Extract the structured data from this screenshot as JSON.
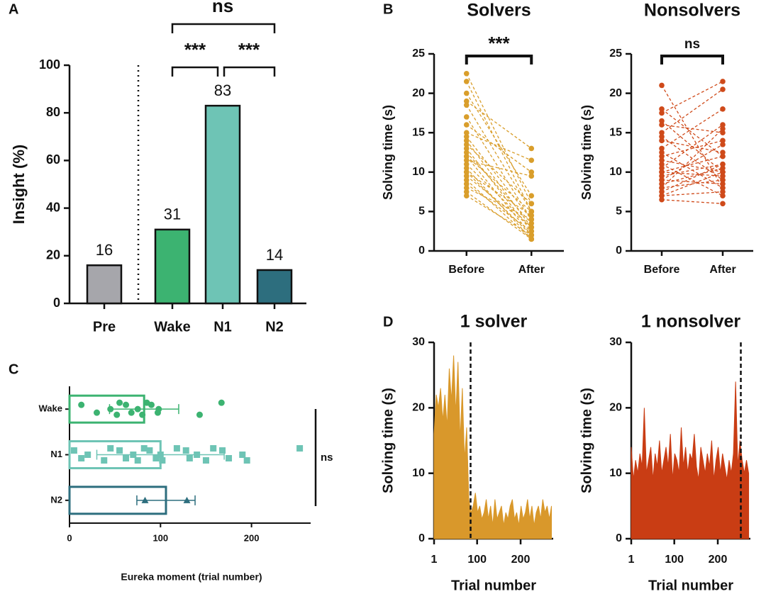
{
  "chart_data": [
    {
      "type": "bar",
      "panel": "A",
      "categories": [
        "Pre",
        "Wake",
        "N1",
        "N2"
      ],
      "values": [
        16,
        31,
        83,
        14
      ],
      "colors": [
        "#a6a6ab",
        "#3cb371",
        "#6ec4b5",
        "#2d6e7e"
      ],
      "ylim": [
        0,
        100
      ],
      "yticks": [
        0,
        20,
        40,
        60,
        80,
        100
      ],
      "ylabel": "Insight (%)",
      "significance": [
        "ns",
        "***",
        "***"
      ]
    },
    {
      "type": "line",
      "panel": "B",
      "title": "Solvers",
      "categories": [
        "Before",
        "After"
      ],
      "color": "#d99e2b",
      "ylim": [
        0,
        25
      ],
      "yticks": [
        0,
        5,
        10,
        15,
        20,
        25
      ],
      "ylabel": "Solving time (s)",
      "significance": "***",
      "series": [
        {
          "values": [
            22.5,
            6
          ]
        },
        {
          "values": [
            21.5,
            5
          ]
        },
        {
          "values": [
            20,
            7
          ]
        },
        {
          "values": [
            19,
            13
          ]
        },
        {
          "values": [
            18.5,
            5
          ]
        },
        {
          "values": [
            17,
            4
          ]
        },
        {
          "values": [
            16,
            10
          ]
        },
        {
          "values": [
            15,
            11.5
          ]
        },
        {
          "values": [
            14.5,
            4
          ]
        },
        {
          "values": [
            14,
            3
          ]
        },
        {
          "values": [
            13.5,
            6
          ]
        },
        {
          "values": [
            13,
            2.5
          ]
        },
        {
          "values": [
            12.5,
            3.5
          ]
        },
        {
          "values": [
            12,
            5
          ]
        },
        {
          "values": [
            12,
            2
          ]
        },
        {
          "values": [
            11.5,
            9.5
          ]
        },
        {
          "values": [
            11,
            3
          ]
        },
        {
          "values": [
            10.5,
            1.5
          ]
        },
        {
          "values": [
            10,
            4.5
          ]
        },
        {
          "values": [
            10,
            2
          ]
        },
        {
          "values": [
            9.5,
            3
          ]
        },
        {
          "values": [
            9,
            1.5
          ]
        },
        {
          "values": [
            8.5,
            2.5
          ]
        },
        {
          "values": [
            8,
            4
          ]
        },
        {
          "values": [
            7.5,
            1.5
          ]
        },
        {
          "values": [
            7,
            2
          ]
        }
      ]
    },
    {
      "type": "line",
      "title": "Nonsolvers",
      "categories": [
        "Before",
        "After"
      ],
      "color": "#cf4a1a",
      "ylim": [
        0,
        25
      ],
      "yticks": [
        0,
        5,
        10,
        15,
        20,
        25
      ],
      "ylabel": "Solving time (s)",
      "significance": "ns",
      "series": [
        {
          "values": [
            21,
            8
          ]
        },
        {
          "values": [
            18,
            12
          ]
        },
        {
          "values": [
            17.5,
            21.5
          ]
        },
        {
          "values": [
            16.5,
            10
          ]
        },
        {
          "values": [
            16,
            15
          ]
        },
        {
          "values": [
            15,
            20.5
          ]
        },
        {
          "values": [
            14.5,
            9
          ]
        },
        {
          "values": [
            14,
            12.5
          ]
        },
        {
          "values": [
            13,
            18
          ]
        },
        {
          "values": [
            12.5,
            8
          ]
        },
        {
          "values": [
            12,
            14
          ]
        },
        {
          "values": [
            11.5,
            10
          ]
        },
        {
          "values": [
            11,
            7
          ]
        },
        {
          "values": [
            10.5,
            16
          ]
        },
        {
          "values": [
            10,
            9.5
          ]
        },
        {
          "values": [
            10,
            12
          ]
        },
        {
          "values": [
            9.5,
            11
          ]
        },
        {
          "values": [
            9,
            8.5
          ]
        },
        {
          "values": [
            9,
            13.5
          ]
        },
        {
          "values": [
            8.5,
            10.5
          ]
        },
        {
          "values": [
            8,
            15.5
          ]
        },
        {
          "values": [
            8,
            9
          ]
        },
        {
          "values": [
            7.5,
            11
          ]
        },
        {
          "values": [
            7,
            7.5
          ]
        },
        {
          "values": [
            7,
            10
          ]
        },
        {
          "values": [
            6.5,
            6
          ]
        }
      ]
    },
    {
      "type": "hbar",
      "panel": "C",
      "categories": [
        "Wake",
        "N1",
        "N2"
      ],
      "values": [
        82,
        100,
        106
      ],
      "errors": [
        38,
        70,
        32
      ],
      "points": [
        [
          13,
          30,
          45,
          52,
          55,
          62,
          68,
          75,
          80,
          85,
          90,
          97,
          98,
          143,
          167
        ],
        [
          5,
          13,
          20,
          38,
          45,
          55,
          62,
          70,
          75,
          82,
          88,
          95,
          100,
          102,
          118,
          128,
          132,
          140,
          150,
          158,
          168,
          175,
          190,
          195,
          253
        ],
        [
          83,
          129
        ]
      ],
      "colors": [
        "#3cb371",
        "#6ec4b5",
        "#2d6e7e"
      ],
      "markers": [
        "circle",
        "square",
        "triangle"
      ],
      "xlim": [
        0,
        265
      ],
      "xticks": [
        0,
        100,
        200
      ],
      "xlabel": "Eureka moment (trial number)",
      "annotation": "ns"
    },
    {
      "type": "area",
      "panel": "D",
      "title": "1 solver",
      "color": "#d9982b",
      "vline": 85,
      "xlim": [
        1,
        275
      ],
      "xticks": [
        1,
        100,
        200
      ],
      "ylim": [
        0,
        30
      ],
      "yticks": [
        0,
        10,
        20,
        30
      ],
      "xlabel": "Trial number",
      "ylabel": "Solving time (s)",
      "x": [
        1,
        6,
        11,
        16,
        21,
        26,
        31,
        36,
        41,
        46,
        51,
        56,
        61,
        66,
        71,
        76,
        81,
        86,
        91,
        96,
        101,
        106,
        111,
        116,
        121,
        126,
        131,
        136,
        141,
        146,
        151,
        156,
        161,
        166,
        171,
        176,
        181,
        186,
        191,
        196,
        201,
        206,
        211,
        216,
        221,
        226,
        231,
        236,
        241,
        246,
        251,
        256,
        261,
        266,
        271
      ],
      "values": [
        16,
        22,
        20,
        23,
        18,
        22,
        17,
        26,
        21,
        28,
        19,
        27,
        15,
        23,
        12,
        17,
        6,
        4,
        5,
        7,
        4,
        5,
        3,
        4,
        6,
        3,
        5,
        2,
        6,
        3,
        4,
        5,
        2,
        4,
        3,
        5,
        6,
        3,
        4,
        2,
        5,
        3,
        4,
        6,
        3,
        5,
        2,
        4,
        5,
        3,
        6,
        4,
        5,
        3,
        5
      ]
    },
    {
      "type": "area",
      "title": "1 nonsolver",
      "color": "#c93d14",
      "vline": 253,
      "xlim": [
        1,
        275
      ],
      "xticks": [
        1,
        100,
        200
      ],
      "ylim": [
        0,
        30
      ],
      "yticks": [
        0,
        10,
        20,
        30
      ],
      "xlabel": "Trial number",
      "ylabel": "Solving time (s)",
      "x": [
        1,
        6,
        11,
        16,
        21,
        26,
        31,
        36,
        41,
        46,
        51,
        56,
        61,
        66,
        71,
        76,
        81,
        86,
        91,
        96,
        101,
        106,
        111,
        116,
        121,
        126,
        131,
        136,
        141,
        146,
        151,
        156,
        161,
        166,
        171,
        176,
        181,
        186,
        191,
        196,
        201,
        206,
        211,
        216,
        221,
        226,
        231,
        236,
        241,
        246,
        251,
        256,
        261,
        266,
        271
      ],
      "values": [
        14,
        9,
        12,
        10,
        13,
        11,
        20,
        10,
        12,
        14,
        9,
        13,
        11,
        15,
        10,
        12,
        14,
        11,
        16,
        9,
        13,
        12,
        10,
        17,
        11,
        14,
        10,
        13,
        12,
        16,
        11,
        9,
        14,
        12,
        10,
        13,
        11,
        15,
        9,
        12,
        14,
        10,
        13,
        11,
        9,
        12,
        10,
        13,
        24,
        11,
        15,
        12,
        10,
        12,
        10
      ]
    }
  ]
}
